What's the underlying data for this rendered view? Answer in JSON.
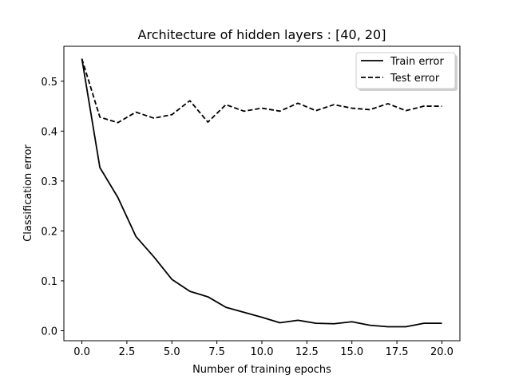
{
  "chart_data": {
    "type": "line",
    "title": "Architecture of hidden layers : [40, 20]",
    "xlabel": "Number of training epochs",
    "ylabel": "Classification error",
    "xlim": [
      -1.0,
      21.0
    ],
    "ylim": [
      -0.02,
      0.57
    ],
    "xticks": [
      0.0,
      2.5,
      5.0,
      7.5,
      10.0,
      12.5,
      15.0,
      17.5,
      20.0
    ],
    "xtick_labels": [
      "0.0",
      "2.5",
      "5.0",
      "7.5",
      "10.0",
      "12.5",
      "15.0",
      "17.5",
      "20.0"
    ],
    "yticks": [
      0.0,
      0.1,
      0.2,
      0.3,
      0.4,
      0.5
    ],
    "ytick_labels": [
      "0.0",
      "0.1",
      "0.2",
      "0.3",
      "0.4",
      "0.5"
    ],
    "grid": false,
    "legend_position": "top-right",
    "x": [
      0,
      1,
      2,
      3,
      4,
      5,
      6,
      7,
      8,
      9,
      10,
      11,
      12,
      13,
      14,
      15,
      16,
      17,
      18,
      19,
      20
    ],
    "series": [
      {
        "name": "Train error",
        "style": "solid",
        "color": "#000000",
        "values": [
          0.545,
          0.327,
          0.267,
          0.189,
          0.148,
          0.103,
          0.079,
          0.068,
          0.047,
          0.037,
          0.027,
          0.016,
          0.021,
          0.015,
          0.014,
          0.018,
          0.011,
          0.008,
          0.008,
          0.015,
          0.015
        ]
      },
      {
        "name": "Test error",
        "style": "dashed",
        "color": "#000000",
        "values": [
          0.545,
          0.428,
          0.417,
          0.438,
          0.426,
          0.433,
          0.461,
          0.418,
          0.453,
          0.44,
          0.446,
          0.44,
          0.456,
          0.441,
          0.453,
          0.446,
          0.443,
          0.455,
          0.441,
          0.45,
          0.45
        ]
      }
    ]
  }
}
